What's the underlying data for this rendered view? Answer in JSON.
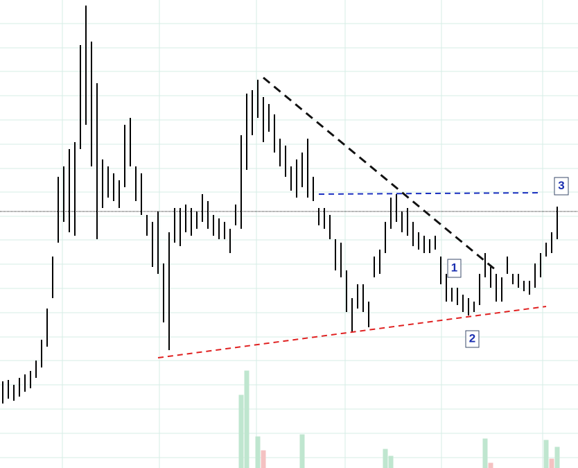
{
  "chart_data": {
    "type": "hilo",
    "color": "#000000",
    "high": [
      125,
      127,
      120,
      130,
      135,
      140,
      155,
      185,
      230,
      305,
      420,
      435,
      460,
      470,
      610,
      667,
      615,
      555,
      445,
      435,
      425,
      415,
      495,
      505,
      435,
      425,
      365,
      355,
      370,
      295,
      340,
      375,
      375,
      380,
      375,
      370,
      395,
      385,
      365,
      360,
      355,
      345,
      380,
      480,
      540,
      545,
      560,
      535,
      525,
      510,
      475,
      465,
      435,
      445,
      455,
      475,
      420,
      375,
      375,
      365,
      330,
      325,
      285,
      245,
      265,
      265,
      240,
      305,
      315,
      355,
      390,
      395,
      370,
      375,
      355,
      340,
      335,
      330,
      335,
      305,
      280,
      260,
      260,
      250,
      245,
      240,
      280,
      310,
      290,
      280,
      275,
      305,
      280,
      280,
      270,
      270,
      295,
      310,
      325,
      340,
      377
    ],
    "low": [
      93,
      100,
      97,
      103,
      110,
      115,
      130,
      145,
      175,
      245,
      325,
      355,
      340,
      335,
      460,
      495,
      435,
      330,
      375,
      390,
      385,
      375,
      405,
      435,
      385,
      365,
      335,
      290,
      280,
      210,
      170,
      325,
      320,
      340,
      335,
      345,
      355,
      345,
      335,
      330,
      330,
      310,
      350,
      345,
      430,
      480,
      505,
      470,
      485,
      455,
      435,
      420,
      400,
      390,
      405,
      390,
      385,
      350,
      345,
      330,
      285,
      275,
      225,
      197,
      230,
      225,
      203,
      275,
      280,
      310,
      345,
      355,
      340,
      335,
      320,
      315,
      310,
      310,
      315,
      265,
      240,
      240,
      235,
      225,
      220,
      225,
      235,
      275,
      260,
      240,
      240,
      280,
      265,
      260,
      255,
      250,
      260,
      275,
      305,
      310,
      330
    ],
    "ylim": [
      0,
      675
    ],
    "ygrid": [
      641,
      606,
      572,
      537,
      502,
      467,
      432,
      398,
      363,
      329,
      294,
      259,
      224,
      189,
      155,
      120,
      85,
      50,
      15
    ],
    "xgrid": [
      10.75,
      28.25,
      45.75,
      61.75,
      79.125,
      97.375
    ],
    "grid_color": "#d6ece6",
    "last_price": 370,
    "trendlines": [
      {
        "color": "#111111",
        "points": [
          [
            47,
            563
          ],
          [
            89,
            285
          ]
        ]
      },
      {
        "color": "#1a2fc0",
        "points": [
          [
            57,
            395
          ],
          [
            97,
            397
          ]
        ]
      },
      {
        "color": "#e02020",
        "points": [
          [
            28,
            159
          ],
          [
            98,
            233
          ]
        ]
      }
    ],
    "volume": {
      "x": [
        43,
        44,
        46,
        47,
        54,
        69,
        70,
        87,
        88,
        98,
        99,
        100
      ],
      "values": [
        105,
        140,
        45,
        25,
        48,
        27,
        17,
        42,
        7,
        40,
        13,
        30
      ],
      "colors": [
        "#bfe6cf",
        "#bfe6cf",
        "#bfe6cf",
        "#f4c2c2",
        "#bfe6cf",
        "#bfe6cf",
        "#bfe6cf",
        "#bfe6cf",
        "#f4c2c2",
        "#bfe6cf",
        "#f4c2c2",
        "#bfe6cf"
      ],
      "ylim": [
        0,
        150
      ]
    },
    "annotations": [
      "1",
      "2",
      "3"
    ]
  }
}
